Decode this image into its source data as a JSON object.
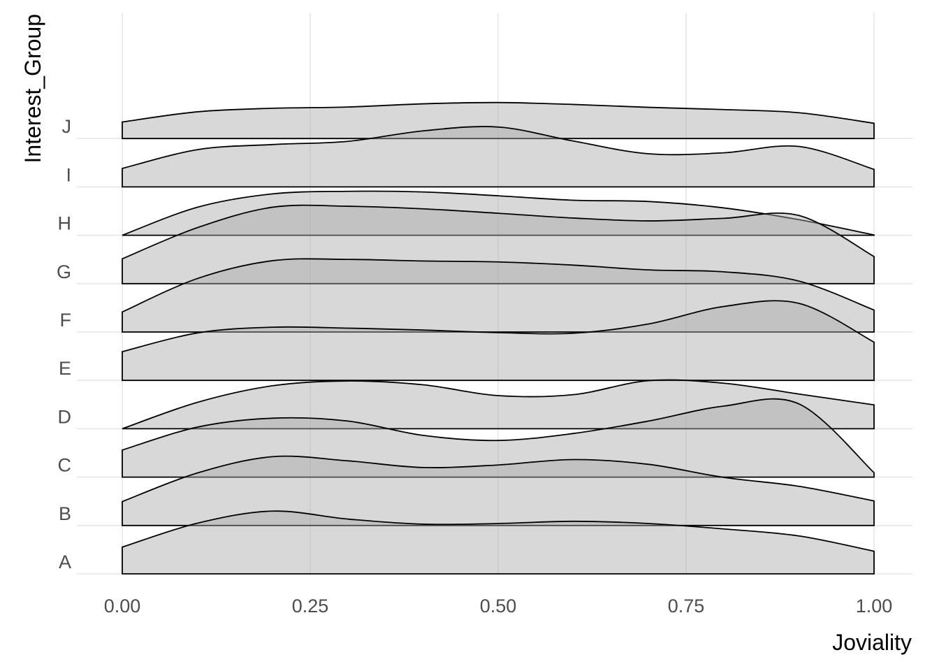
{
  "chart_data": {
    "type": "ridgeline",
    "xlabel": "Joviality",
    "ylabel": "Interest_Group",
    "xlim": [
      0,
      1
    ],
    "x_ticks": [
      {
        "value": 0.0,
        "label": "0.00"
      },
      {
        "value": 0.25,
        "label": "0.25"
      },
      {
        "value": 0.5,
        "label": "0.50"
      },
      {
        "value": 0.75,
        "label": "0.75"
      },
      {
        "value": 1.0,
        "label": "1.00"
      }
    ],
    "categories": [
      "A",
      "B",
      "C",
      "D",
      "E",
      "F",
      "G",
      "H",
      "I",
      "J"
    ],
    "ridge_scale": 1.6,
    "grid": true,
    "colors": {
      "fill": "#a9a9a9",
      "outline": "#000000",
      "grid": "#e6e6e6"
    },
    "series": [
      {
        "name": "A",
        "x": [
          0,
          0.1,
          0.2,
          0.3,
          0.4,
          0.5,
          0.6,
          0.7,
          0.8,
          0.9,
          1.0
        ],
        "density": [
          0.84,
          1.59,
          1.97,
          1.72,
          1.56,
          1.58,
          1.65,
          1.58,
          1.41,
          1.19,
          0.71
        ]
      },
      {
        "name": "B",
        "x": [
          0,
          0.1,
          0.2,
          0.3,
          0.4,
          0.5,
          0.6,
          0.7,
          0.8,
          0.9,
          1.0
        ],
        "density": [
          0.75,
          1.65,
          2.16,
          2.03,
          1.82,
          1.9,
          2.07,
          1.92,
          1.51,
          1.23,
          0.77
        ]
      },
      {
        "name": "C",
        "x": [
          0,
          0.1,
          0.2,
          0.3,
          0.4,
          0.5,
          0.6,
          0.7,
          0.8,
          0.9,
          1.0
        ],
        "density": [
          0.85,
          1.57,
          1.85,
          1.76,
          1.31,
          1.15,
          1.37,
          1.76,
          2.23,
          2.3,
          0.14
        ]
      },
      {
        "name": "D",
        "x": [
          0,
          0.1,
          0.2,
          0.3,
          0.4,
          0.5,
          0.6,
          0.7,
          0.8,
          0.9,
          1.0
        ],
        "density": [
          0,
          0.83,
          1.35,
          1.5,
          1.38,
          1.04,
          1.07,
          1.51,
          1.43,
          1.09,
          0.75
        ]
      },
      {
        "name": "E",
        "x": [
          0,
          0.1,
          0.2,
          0.3,
          0.4,
          0.5,
          0.6,
          0.7,
          0.8,
          0.9,
          1.0
        ],
        "density": [
          0.9,
          1.49,
          1.67,
          1.64,
          1.58,
          1.5,
          1.48,
          1.77,
          2.32,
          2.42,
          1.2
        ]
      },
      {
        "name": "F",
        "x": [
          0,
          0.1,
          0.2,
          0.3,
          0.4,
          0.5,
          0.6,
          0.7,
          0.8,
          0.9,
          1.0
        ],
        "density": [
          0.63,
          1.68,
          2.24,
          2.28,
          2.23,
          2.2,
          2.1,
          1.95,
          1.89,
          1.6,
          0.69
        ]
      },
      {
        "name": "G",
        "x": [
          0,
          0.1,
          0.2,
          0.3,
          0.4,
          0.5,
          0.6,
          0.7,
          0.8,
          0.9,
          1.0
        ],
        "density": [
          0.78,
          1.76,
          2.4,
          2.43,
          2.35,
          2.21,
          2.06,
          1.97,
          2.05,
          2.14,
          0.85
        ]
      },
      {
        "name": "H",
        "x": [
          0,
          0.1,
          0.2,
          0.3,
          0.4,
          0.5,
          0.6,
          0.7,
          0.8,
          0.9,
          1.0
        ],
        "density": [
          0,
          0.88,
          1.3,
          1.38,
          1.36,
          1.24,
          1.1,
          1.06,
          0.86,
          0.49,
          0.01
        ]
      },
      {
        "name": "I",
        "x": [
          0,
          0.1,
          0.2,
          0.3,
          0.4,
          0.5,
          0.6,
          0.7,
          0.8,
          0.9,
          1.0
        ],
        "density": [
          0.58,
          1.17,
          1.33,
          1.43,
          1.76,
          1.88,
          1.44,
          1.04,
          1.07,
          1.27,
          0.55
        ]
      },
      {
        "name": "J",
        "x": [
          0,
          0.1,
          0.2,
          0.3,
          0.4,
          0.5,
          0.6,
          0.7,
          0.8,
          0.9,
          1.0
        ],
        "density": [
          0.52,
          0.84,
          0.95,
          0.99,
          1.09,
          1.13,
          1.07,
          0.98,
          0.91,
          0.81,
          0.48
        ]
      }
    ]
  }
}
